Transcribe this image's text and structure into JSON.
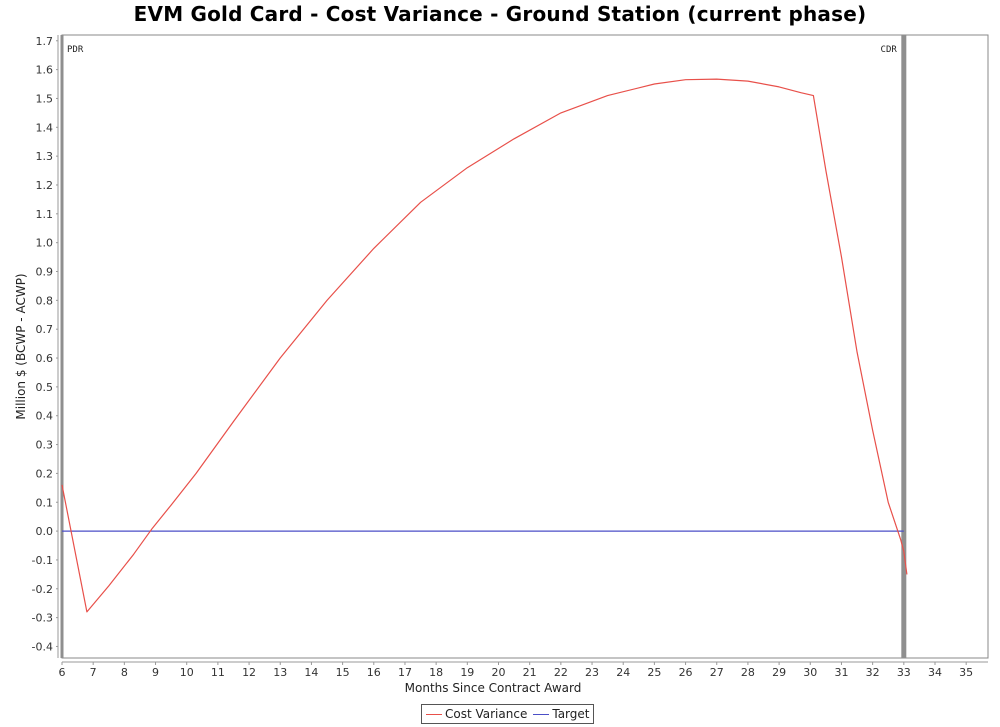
{
  "chart_data": {
    "type": "line",
    "title": "EVM Gold Card - Cost Variance - Ground Station (current phase)",
    "xlabel": "Months Since Contract Award",
    "ylabel": "Million $ (BCWP - ACWP)",
    "xlim": [
      6,
      35.7
    ],
    "ylim": [
      -0.44,
      1.72
    ],
    "x_ticks": [
      6,
      7,
      8,
      9,
      10,
      11,
      12,
      13,
      14,
      15,
      16,
      17,
      18,
      19,
      20,
      21,
      22,
      23,
      24,
      25,
      26,
      27,
      28,
      29,
      30,
      31,
      32,
      33,
      34,
      35
    ],
    "y_ticks": [
      -0.4,
      -0.3,
      -0.2,
      -0.1,
      0.0,
      0.1,
      0.2,
      0.3,
      0.4,
      0.5,
      0.6,
      0.7,
      0.8,
      0.9,
      1.0,
      1.1,
      1.2,
      1.3,
      1.4,
      1.5,
      1.6,
      1.7
    ],
    "y_tick_labels": [
      "-0.4",
      "-0.3",
      "-0.2",
      "-0.1",
      "0.0",
      "0.1",
      "0.2",
      "0.3",
      "0.4",
      "0.5",
      "0.6",
      "0.7",
      "0.8",
      "0.9",
      "1.0",
      "1.1",
      "1.2",
      "1.3",
      "1.4",
      "1.5",
      "1.6",
      "1.7"
    ],
    "grid": false,
    "legend_position": "bottom-center",
    "series": [
      {
        "name": "Cost Variance",
        "color": "#e8504a",
        "x": [
          6.0,
          6.8,
          7.5,
          8.3,
          8.9,
          9.5,
          10.3,
          11.5,
          13.0,
          14.5,
          16.0,
          17.5,
          19.0,
          20.5,
          22.0,
          23.5,
          25.0,
          26.0,
          27.0,
          28.0,
          29.0,
          29.7,
          30.1,
          30.5,
          31.0,
          31.5,
          32.0,
          32.5,
          32.9,
          33.0,
          33.1
        ],
        "y": [
          0.16,
          -0.28,
          -0.19,
          -0.08,
          0.01,
          0.09,
          0.2,
          0.38,
          0.6,
          0.8,
          0.98,
          1.14,
          1.26,
          1.36,
          1.45,
          1.51,
          1.55,
          1.565,
          1.567,
          1.56,
          1.54,
          1.52,
          1.51,
          1.25,
          0.95,
          0.62,
          0.35,
          0.1,
          -0.03,
          -0.07,
          -0.15
        ]
      },
      {
        "name": "Target",
        "color": "#4b4fc7",
        "x": [
          6.0,
          33.0
        ],
        "y": [
          0.0,
          0.0
        ]
      }
    ],
    "annotations": [
      {
        "label": "PDR",
        "x": 6.0
      },
      {
        "label": "CDR",
        "x": 33.0
      }
    ]
  }
}
